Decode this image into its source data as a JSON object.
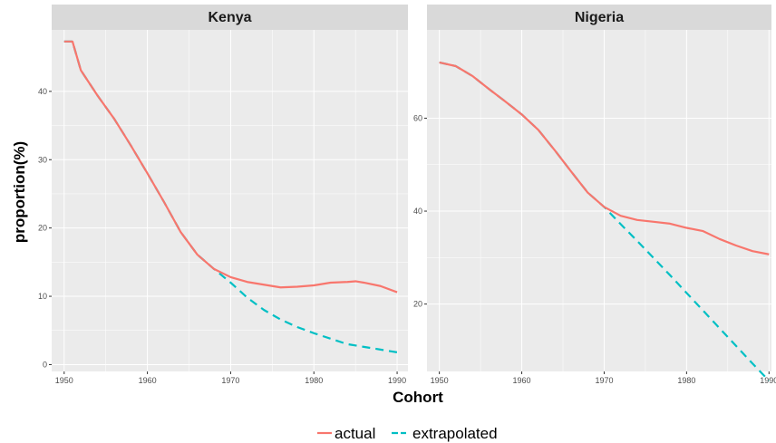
{
  "colors": {
    "actual": "#f8766d",
    "extrapolated": "#00bfc4",
    "panel_background": "#ebebeb",
    "strip_background": "#d9d9d9",
    "grid": "#ffffff"
  },
  "chart_data": {
    "type": "line",
    "facet": "small-multiples",
    "xlabel": "Cohort",
    "ylabel": "proportion(%)",
    "grid": true,
    "legend": {
      "position": "bottom",
      "entries": [
        {
          "name": "actual",
          "style": "solid"
        },
        {
          "name": "extrapolated",
          "style": "dashed"
        }
      ]
    },
    "panels": [
      {
        "title": "Kenya",
        "xlim": [
          1948.5,
          1991.3
        ],
        "ylim": [
          -1,
          49
        ],
        "x_ticks": [
          1950,
          1960,
          1970,
          1980,
          1990
        ],
        "y_ticks": [
          0,
          10,
          20,
          30,
          40
        ],
        "series": [
          {
            "name": "actual",
            "x": [
              1950,
              1951,
              1952,
              1954,
              1956,
              1958,
              1960,
              1962,
              1964,
              1966,
              1968,
              1970,
              1972,
              1974,
              1976,
              1978,
              1980,
              1982,
              1984,
              1985,
              1986,
              1988,
              1990
            ],
            "y": [
              47.3,
              47.3,
              43.1,
              39.4,
              36.0,
              32.1,
              28.0,
              23.8,
              19.4,
              16.1,
              14.0,
              12.8,
              12.1,
              11.7,
              11.3,
              11.4,
              11.6,
              12.0,
              12.1,
              12.2,
              12.0,
              11.5,
              10.6
            ]
          },
          {
            "name": "extrapolated",
            "x": [
              1950,
              1951,
              1952,
              1954,
              1956,
              1958,
              1960,
              1962,
              1964,
              1966,
              1968,
              1970,
              1972,
              1974,
              1976,
              1978,
              1980,
              1982,
              1984,
              1986,
              1988,
              1990
            ],
            "y": [
              47.3,
              47.3,
              43.1,
              39.4,
              36.0,
              32.1,
              28.0,
              23.8,
              19.4,
              16.1,
              14.0,
              12.0,
              9.8,
              8.0,
              6.6,
              5.5,
              4.6,
              3.8,
              3.0,
              2.6,
              2.2,
              1.8
            ]
          }
        ]
      },
      {
        "title": "Nigeria",
        "xlim": [
          1948.5,
          1990.3
        ],
        "ylim": [
          5.5,
          79
        ],
        "x_ticks": [
          1950,
          1960,
          1970,
          1980,
          1990
        ],
        "y_ticks": [
          20,
          40,
          60
        ],
        "series": [
          {
            "name": "actual",
            "x": [
              1950,
              1952,
              1954,
              1956,
              1958,
              1960,
              1962,
              1964,
              1966,
              1968,
              1970,
              1972,
              1974,
              1976,
              1978,
              1980,
              1982,
              1984,
              1986,
              1988,
              1990
            ],
            "y": [
              72.0,
              71.2,
              69.1,
              66.3,
              63.6,
              60.8,
              57.5,
              53.1,
              48.5,
              44.0,
              40.9,
              39.0,
              38.1,
              37.7,
              37.3,
              36.4,
              35.7,
              34.0,
              32.6,
              31.4,
              30.7
            ]
          },
          {
            "name": "extrapolated",
            "x": [
              1950,
              1952,
              1954,
              1956,
              1958,
              1960,
              1962,
              1964,
              1966,
              1968,
              1970,
              1972,
              1974,
              1976,
              1978,
              1980,
              1982,
              1984,
              1986,
              1988,
              1990
            ],
            "y": [
              72.0,
              71.2,
              69.1,
              66.3,
              63.6,
              60.8,
              57.5,
              53.1,
              48.5,
              44.0,
              40.9,
              37.2,
              33.6,
              29.9,
              26.2,
              22.4,
              18.6,
              14.8,
              11.0,
              7.2,
              3.5
            ]
          }
        ]
      }
    ]
  }
}
